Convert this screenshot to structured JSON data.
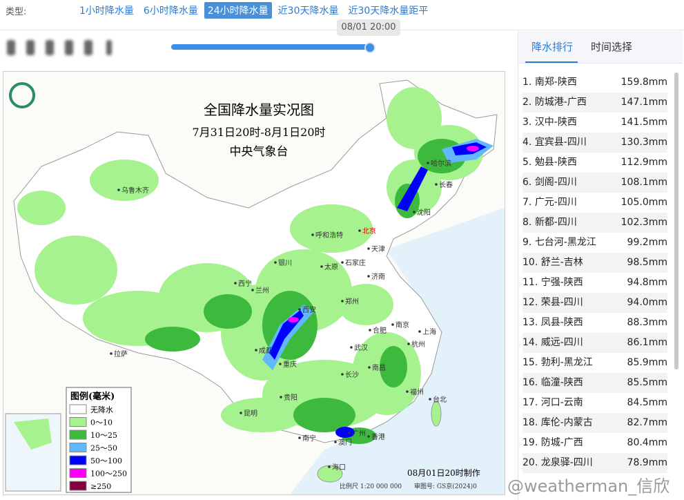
{
  "toolbar": {
    "label": "类型:",
    "tabs": [
      "1小时降水量",
      "6小时降水量",
      "24小时降水量",
      "近30天降水量",
      "近30天降水量距平"
    ]
  },
  "time_tooltip": "08/01 20:00",
  "map": {
    "title": "全国降水量实况图",
    "subtitle": "7月31日20时-8月1日20时",
    "issuer": "中央气象台",
    "legend_title": "图例(毫米)",
    "legend": [
      {
        "label": "无降水",
        "color": "#ffffff"
      },
      {
        "label": "0～10",
        "color": "#a6f28f"
      },
      {
        "label": "10～25",
        "color": "#3dba3d"
      },
      {
        "label": "25～50",
        "color": "#61b8ff"
      },
      {
        "label": "50～100",
        "color": "#0000fe"
      },
      {
        "label": "100～250",
        "color": "#fa00fa"
      },
      {
        "label": "≥250",
        "color": "#800040"
      }
    ],
    "cities": [
      "乌鲁木齐",
      "哈尔滨",
      "长春",
      "沈阳",
      "北京",
      "天津",
      "呼和浩特",
      "银川",
      "太原",
      "石家庄",
      "济南",
      "西宁",
      "兰州",
      "郑州",
      "西安",
      "南京",
      "合肥",
      "上海",
      "拉萨",
      "成都",
      "重庆",
      "武汉",
      "杭州",
      "南昌",
      "长沙",
      "福州",
      "台北",
      "贵阳",
      "昆明",
      "南宁",
      "广州",
      "澳门",
      "香港",
      "海口"
    ],
    "made": "08月01日20时制作",
    "scale": "比例尺 1:20 000 000",
    "review": "审图号: GS京(2024)0"
  },
  "panel": {
    "tabs": [
      "降水排行",
      "时间选择"
    ],
    "ranking": [
      {
        "rank": "1.",
        "place": "南郑-陕西",
        "amount": "159.8mm"
      },
      {
        "rank": "2.",
        "place": "防城港-广西",
        "amount": "147.1mm"
      },
      {
        "rank": "3.",
        "place": "汉中-陕西",
        "amount": "141.5mm"
      },
      {
        "rank": "4.",
        "place": "宜宾县-四川",
        "amount": "130.3mm"
      },
      {
        "rank": "5.",
        "place": "勉县-陕西",
        "amount": "112.9mm"
      },
      {
        "rank": "6.",
        "place": "剑阁-四川",
        "amount": "108.1mm"
      },
      {
        "rank": "7.",
        "place": "广元-四川",
        "amount": "105.0mm"
      },
      {
        "rank": "8.",
        "place": "新都-四川",
        "amount": "102.3mm"
      },
      {
        "rank": "9.",
        "place": "七台河-黑龙江",
        "amount": "99.2mm"
      },
      {
        "rank": "10.",
        "place": "舒兰-吉林",
        "amount": "98.5mm"
      },
      {
        "rank": "11.",
        "place": "宁强-陕西",
        "amount": "94.8mm"
      },
      {
        "rank": "12.",
        "place": "荣县-四川",
        "amount": "94.0mm"
      },
      {
        "rank": "13.",
        "place": "凤县-陕西",
        "amount": "88.3mm"
      },
      {
        "rank": "14.",
        "place": "威远-四川",
        "amount": "86.1mm"
      },
      {
        "rank": "15.",
        "place": "勃利-黑龙江",
        "amount": "85.9mm"
      },
      {
        "rank": "16.",
        "place": "临潼-陕西",
        "amount": "85.5mm"
      },
      {
        "rank": "17.",
        "place": "河口-云南",
        "amount": "84.5mm"
      },
      {
        "rank": "18.",
        "place": "库伦-内蒙古",
        "amount": "82.7mm"
      },
      {
        "rank": "19.",
        "place": "防城-广西",
        "amount": "80.4mm"
      },
      {
        "rank": "20.",
        "place": "龙泉驿-四川",
        "amount": "78.9mm"
      }
    ]
  },
  "watermark": "@weatherman_信欣"
}
